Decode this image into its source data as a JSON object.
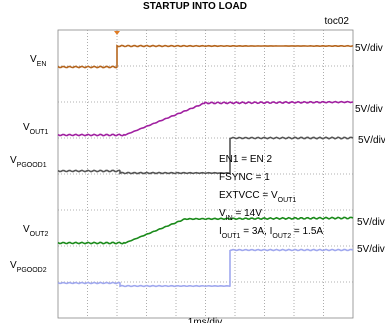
{
  "title": "STARTUP INTO LOAD",
  "figure_id": "toc02",
  "channels": [
    {
      "label": [
        "V",
        "EN"
      ],
      "scale": "5V/div"
    },
    {
      "label": [
        "V",
        "OUT1"
      ],
      "scale": "5V/div"
    },
    {
      "label": [
        "V",
        "PGOOD1"
      ],
      "scale": "5V/div"
    },
    {
      "label": [
        "V",
        "OUT2"
      ],
      "scale": "5V/div"
    },
    {
      "label": [
        "V",
        "PGOOD2"
      ],
      "scale": "5V/div"
    }
  ],
  "conditions": [
    [
      "EN1 = EN 2"
    ],
    [
      "FSYNC  = 1"
    ],
    [
      "EXTVCC = V",
      "OUT1"
    ],
    [
      "V",
      "IN",
      " = 14V"
    ],
    [
      "I",
      "OUT1",
      " = 3A, I",
      "OUT2",
      " = 1.5A"
    ]
  ],
  "time_scale": "1ms/div"
}
